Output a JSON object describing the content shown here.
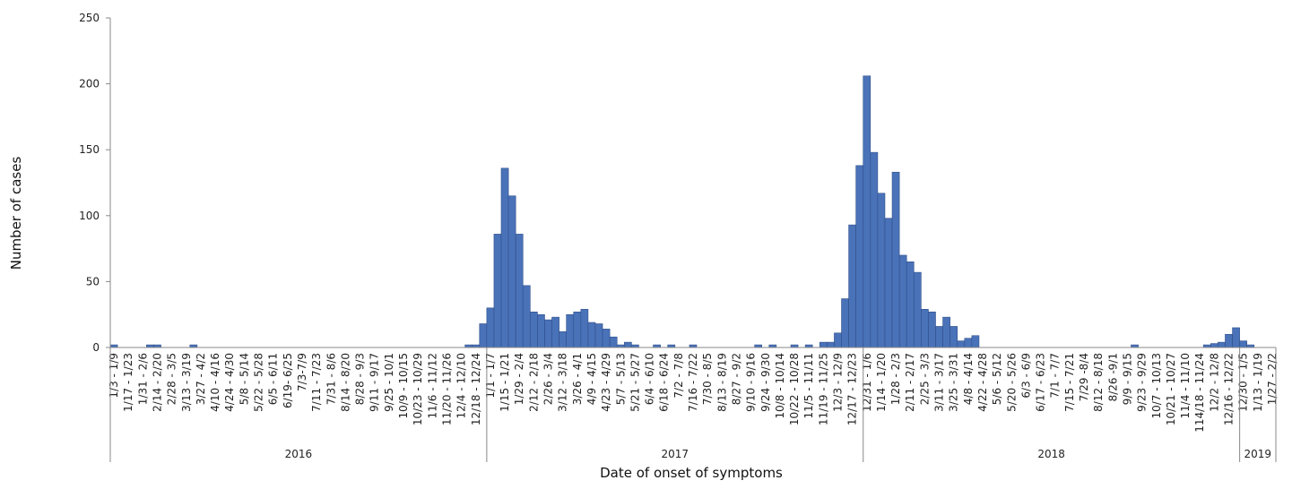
{
  "chart_data": {
    "type": "bar",
    "title": "",
    "xlabel": "Date of onset of symptoms",
    "ylabel": "Number of cases",
    "ylim": [
      0,
      250
    ],
    "yticks": [
      "0",
      "50",
      "100",
      "150",
      "200",
      "250"
    ],
    "bar_color": "#4a72b8",
    "bar_edge_color": "#2f4f8a",
    "axis_color": "#888888",
    "x_tick_labels": [
      "1/3 - 1/9",
      "1/17 - 1/23",
      "1/31 - 2/6",
      "2/14 - 2/20",
      "2/28 - 3/5",
      "3/13 - 3/19",
      "3/27 - 4/2",
      "4/10 - 4/16",
      "4/24 - 4/30",
      "5/8 - 5/14",
      "5/22 - 5/28",
      "6/5 - 6/11",
      "6/19- 6/25",
      "7/3-7/9",
      "7/11 - 7/23",
      "7/31 - 8/6",
      "8/14 - 8/20",
      "8/28 - 9/3",
      "9/11 - 9/17",
      "9/25 - 10/1",
      "10/9 - 10/15",
      "10/23 - 10/29",
      "11/6 - 11/12",
      "11/20 - 11/26",
      "12/4 - 12/10",
      "12/18 - 12/24",
      "1/1 - 1/7",
      "1/15 - 1/21",
      "1/29 - 2/4",
      "2/12 - 2/18",
      "2/26 - 3/4",
      "3/12 - 3/18",
      "3/26 - 4/1",
      "4/9 - 4/15",
      "4/23 - 4/29",
      "5/7 - 5/13",
      "5/21 - 5/27",
      "6/4 - 6/10",
      "6/18 - 6/24",
      "7/2 - 7/8",
      "7/16 - 7/22",
      "7/30 - 8/5",
      "8/13 - 8/19",
      "8/27 - 9/2",
      "9/10 - 9/16",
      "9/24 - 9/30",
      "10/8 - 10/14",
      "10/22 - 10/28",
      "11/5 - 11/11",
      "11/19 - 11/25",
      "12/3 - 12/9",
      "12/17 - 12/23",
      "12/31 - 1/6",
      "1/14 - 1/20",
      "1/28 - 2/3",
      "2/11 - 2/17",
      "2/25 - 3/3",
      "3/11 - 3/17",
      "3/25 - 3/31",
      "4/8 - 4/14",
      "4/22 - 4/28",
      "5/6 - 5/12",
      "5/20 - 5/26",
      "6/3 - 6/9",
      "6/17 - 6/23",
      "7/1 - 7/7",
      "7/15 - 7/21",
      "7/29 -8/4",
      "8/12 - 8/18",
      "8/26 -9/1",
      "9/9 - 9/15",
      "9/23 - 9/29",
      "10/7 - 10/13",
      "10/21 - 10/27",
      "11/4 - 11/10",
      "114/18 - 11/24",
      "12/2 - 12/8",
      "12/16 - 12/22",
      "12/30 - 1/5",
      "1/13 - 1/19",
      "1/27 - 2/2"
    ],
    "years": [
      {
        "label": "2016",
        "weeks": 52
      },
      {
        "label": "2017",
        "weeks": 52
      },
      {
        "label": "2018",
        "weeks": 52
      },
      {
        "label": "2019",
        "weeks": 5
      }
    ],
    "values": [
      2,
      0,
      0,
      0,
      0,
      0,
      0,
      0,
      0,
      0,
      0,
      0,
      0,
      0,
      0,
      0,
      0,
      0,
      0,
      0,
      0,
      2,
      2,
      0,
      0,
      0,
      0,
      0,
      0,
      0,
      0,
      0,
      0,
      0,
      0,
      0,
      0,
      0,
      0,
      0,
      0,
      0,
      0,
      0,
      0,
      0,
      0,
      0,
      0,
      0,
      0,
      0,
      0,
      0,
      0,
      0,
      0,
      0,
      0,
      0,
      0,
      0,
      0,
      0,
      0,
      2,
      2,
      18,
      30,
      86,
      136,
      115,
      86,
      47,
      27,
      25,
      21,
      23,
      12,
      25,
      27,
      29,
      19,
      18,
      14,
      8,
      2,
      4,
      2,
      0,
      0,
      0,
      2,
      0,
      0,
      2,
      0,
      0,
      0,
      2,
      0,
      0,
      0,
      0,
      0,
      0,
      0,
      0,
      0,
      0,
      0,
      0,
      0,
      0,
      0,
      0,
      0,
      0,
      0,
      0,
      0,
      0,
      0,
      0,
      0,
      0,
      0,
      0,
      0,
      0,
      0,
      0,
      0,
      0,
      2,
      0,
      0,
      0,
      0,
      0,
      0,
      0,
      0,
      0,
      0,
      0,
      0,
      0,
      0,
      0,
      0,
      0,
      0,
      0,
      0,
      0,
      0,
      0,
      0,
      0,
      0,
      0,
      0,
      0,
      0,
      0,
      0,
      0,
      0,
      0,
      0,
      0,
      0,
      2,
      0,
      2,
      0,
      0,
      0,
      0,
      0,
      0,
      0,
      0,
      0,
      0,
      0,
      0,
      0,
      0,
      0,
      0,
      0,
      0,
      0,
      0,
      0,
      0,
      0,
      0,
      0,
      0,
      0,
      0,
      0,
      0,
      0,
      0,
      0,
      0,
      0,
      0,
      0,
      0,
      0,
      0,
      0,
      0,
      0,
      0,
      0,
      0,
      0,
      0,
      0,
      0,
      0,
      0,
      0,
      0,
      0,
      0,
      0,
      0,
      2,
      0,
      0,
      0,
      0,
      0,
      0,
      0,
      0,
      2,
      0,
      0,
      0,
      0,
      0,
      0,
      0,
      0,
      0,
      0,
      0,
      0,
      0,
      0,
      0,
      0,
      0,
      0,
      0,
      0,
      0,
      0,
      0,
      0,
      0,
      0,
      0,
      0,
      0,
      0,
      0,
      0,
      0,
      0,
      0,
      0,
      0,
      0,
      0,
      0,
      0,
      0,
      0,
      0,
      0,
      0,
      0,
      0,
      0,
      0,
      0,
      0,
      0,
      0,
      0,
      0,
      0,
      0,
      0,
      0,
      0,
      0,
      0,
      0,
      0,
      0,
      0,
      0,
      0,
      0,
      0,
      0,
      0,
      0,
      0,
      0,
      0,
      0,
      0,
      0,
      0,
      0,
      0,
      0,
      0,
      0,
      0,
      0,
      0,
      0,
      0,
      0,
      0,
      0,
      0,
      0,
      0,
      0,
      0,
      0,
      0,
      0,
      0,
      0,
      0,
      0,
      0,
      0,
      0,
      0,
      0,
      0,
      0,
      0,
      0,
      0,
      0,
      0,
      0,
      0,
      0,
      0,
      0,
      0,
      0,
      0,
      0,
      0,
      0,
      0,
      0,
      0,
      0,
      0,
      0,
      0,
      0,
      0,
      0,
      0,
      0,
      0,
      0,
      0,
      0,
      0,
      0,
      0,
      0,
      0,
      0,
      0,
      0,
      0,
      0,
      0,
      0,
      0,
      0,
      0,
      0,
      0,
      0,
      0,
      0,
      0,
      0,
      0,
      0,
      0,
      0,
      0,
      0,
      0,
      0,
      0,
      0,
      0,
      0,
      0,
      0,
      0,
      0,
      0,
      0,
      0,
      0,
      0,
      0,
      0,
      0,
      0,
      0,
      0,
      0,
      0,
      0,
      0,
      0,
      0,
      0,
      0,
      0,
      0,
      0,
      0,
      0,
      0,
      0,
      0,
      0,
      0,
      0,
      0
    ]
  }
}
